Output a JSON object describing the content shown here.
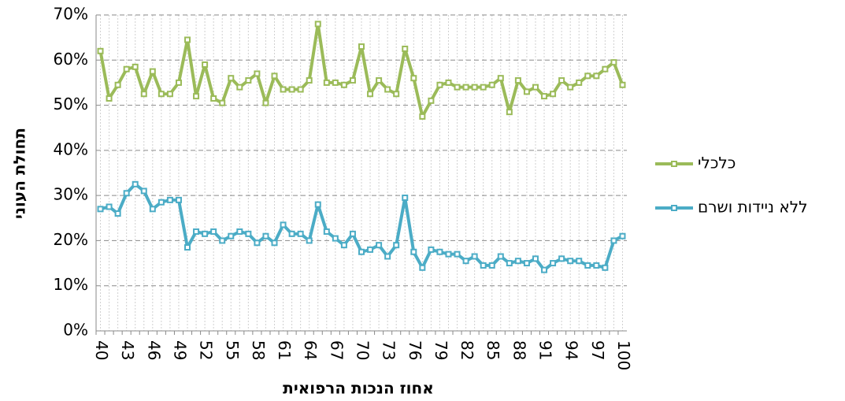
{
  "chart_data": {
    "type": "line",
    "x_label": "אחוז הנכות הרפואית",
    "y_label": "תחולת העוני",
    "categories": [
      "40",
      null,
      null,
      "43",
      null,
      null,
      "46",
      null,
      null,
      "49",
      null,
      null,
      "52",
      null,
      null,
      "55",
      null,
      null,
      "58",
      null,
      null,
      "61",
      null,
      null,
      "64",
      null,
      null,
      "67",
      null,
      null,
      "70",
      null,
      null,
      "73",
      null,
      null,
      "76",
      null,
      null,
      "79",
      null,
      null,
      "82",
      null,
      null,
      "85",
      null,
      null,
      "88",
      null,
      null,
      "91",
      null,
      null,
      "94",
      null,
      null,
      "97",
      null,
      null,
      "100"
    ],
    "series": [
      {
        "name": "כלכלי",
        "color": "#9bbb59",
        "values": [
          62,
          51.5,
          54.5,
          58,
          58.5,
          52.5,
          57.5,
          52.5,
          52.5,
          55,
          64.5,
          52,
          59,
          51.5,
          50.5,
          56,
          54,
          55.5,
          57,
          50.5,
          56.5,
          53.5,
          53.5,
          53.5,
          55.5,
          68,
          55,
          55,
          54.5,
          55.5,
          63,
          52.5,
          55.5,
          53.5,
          52.5,
          62.5,
          56,
          47.5,
          51,
          54.5,
          55,
          54,
          54,
          54,
          54,
          54.5,
          56,
          48.5,
          55.5,
          53,
          54,
          52,
          52.5,
          55.5,
          54,
          55,
          56.5,
          56.5,
          58,
          59.5,
          54.5
        ]
      },
      {
        "name": "ללא ניידות ושרם",
        "color": "#4bacc6",
        "values": [
          27,
          27.5,
          26,
          30.5,
          32.5,
          31,
          27,
          28.5,
          29,
          29,
          18.5,
          22,
          21.5,
          22,
          20,
          21,
          22,
          21.5,
          19.5,
          21,
          19.5,
          23.5,
          21.5,
          21.5,
          20,
          28,
          22,
          20.5,
          19,
          21.5,
          17.5,
          18,
          19,
          16.5,
          19,
          29.5,
          17.5,
          14,
          18,
          17.5,
          17,
          17,
          15.5,
          16.5,
          14.5,
          14.5,
          16.5,
          15,
          15.5,
          15,
          16,
          13.5,
          15,
          16,
          15.5,
          15.5,
          14.5,
          14.5,
          14,
          20,
          21
        ]
      }
    ],
    "ylim": [
      0,
      70
    ],
    "yticks": [
      {
        "value": 0,
        "label": "0%"
      },
      {
        "value": 10,
        "label": "10%"
      },
      {
        "value": 20,
        "label": "20%"
      },
      {
        "value": 30,
        "label": "30%"
      },
      {
        "value": 40,
        "label": "40%"
      },
      {
        "value": 50,
        "label": "50%"
      },
      {
        "value": 60,
        "label": "60%"
      },
      {
        "value": 70,
        "label": "70%"
      }
    ],
    "grid": true,
    "legend": "right"
  }
}
